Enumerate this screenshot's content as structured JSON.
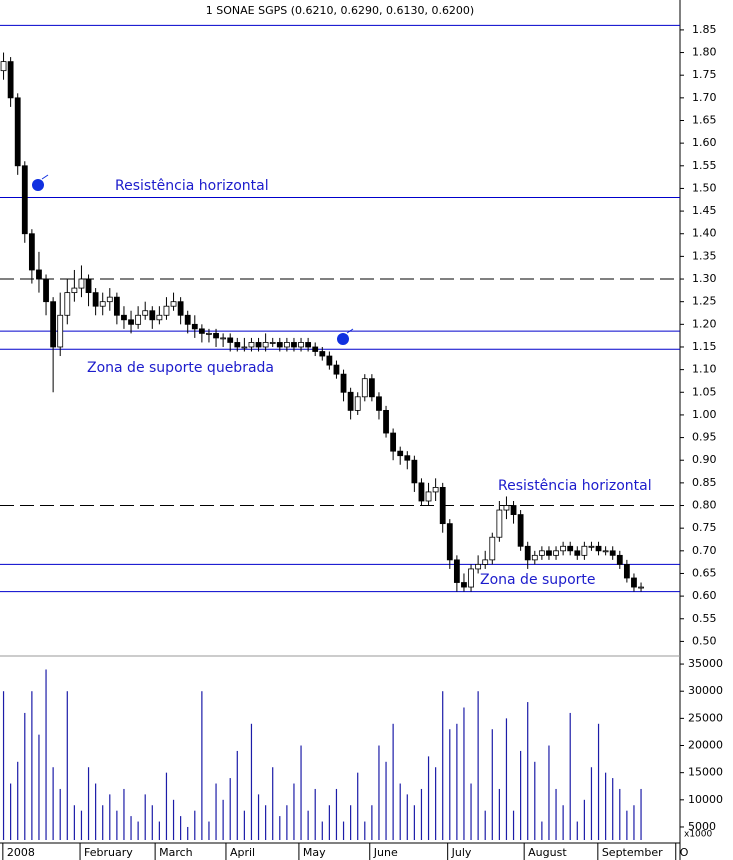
{
  "chart_data": [
    {
      "type": "candlestick",
      "title": "1 SONAE SGPS (0.6210, 0.6290, 0.6130, 0.6200)",
      "open": [
        1.76,
        1.78,
        1.7,
        1.55,
        1.4,
        1.32,
        1.3,
        1.25,
        1.15,
        1.22,
        1.27,
        1.28,
        1.3,
        1.27,
        1.24,
        1.25,
        1.26,
        1.22,
        1.21,
        1.2,
        1.22,
        1.23,
        1.21,
        1.22,
        1.24,
        1.25,
        1.22,
        1.2,
        1.19,
        1.18,
        1.18,
        1.17,
        1.17,
        1.16,
        1.15,
        1.15,
        1.16,
        1.15,
        1.16,
        1.16,
        1.15,
        1.16,
        1.15,
        1.16,
        1.15,
        1.14,
        1.13,
        1.11,
        1.09,
        1.05,
        1.01,
        1.04,
        1.08,
        1.04,
        1.01,
        0.96,
        0.92,
        0.91,
        0.9,
        0.85,
        0.81,
        0.83,
        0.84,
        0.76,
        0.68,
        0.63,
        0.62,
        0.66,
        0.67,
        0.68,
        0.73,
        0.79,
        0.8,
        0.78,
        0.71,
        0.68,
        0.69,
        0.7,
        0.69,
        0.7,
        0.71,
        0.7,
        0.69,
        0.71,
        0.71,
        0.7,
        0.7,
        0.69,
        0.67,
        0.64,
        0.62
      ],
      "high": [
        1.8,
        1.79,
        1.71,
        1.56,
        1.41,
        1.36,
        1.31,
        1.26,
        1.27,
        1.3,
        1.32,
        1.33,
        1.31,
        1.28,
        1.27,
        1.28,
        1.27,
        1.24,
        1.23,
        1.24,
        1.25,
        1.24,
        1.24,
        1.26,
        1.27,
        1.26,
        1.23,
        1.22,
        1.2,
        1.19,
        1.19,
        1.18,
        1.18,
        1.17,
        1.17,
        1.17,
        1.17,
        1.18,
        1.17,
        1.17,
        1.17,
        1.17,
        1.17,
        1.17,
        1.16,
        1.15,
        1.14,
        1.12,
        1.1,
        1.06,
        1.05,
        1.09,
        1.09,
        1.05,
        1.02,
        0.97,
        0.93,
        0.92,
        0.91,
        0.86,
        0.85,
        0.86,
        0.85,
        0.77,
        0.69,
        0.65,
        0.67,
        0.69,
        0.7,
        0.74,
        0.81,
        0.82,
        0.81,
        0.79,
        0.72,
        0.7,
        0.71,
        0.71,
        0.71,
        0.72,
        0.72,
        0.71,
        0.72,
        0.72,
        0.72,
        0.71,
        0.71,
        0.7,
        0.68,
        0.65,
        0.63
      ],
      "low": [
        1.74,
        1.68,
        1.53,
        1.38,
        1.29,
        1.27,
        1.22,
        1.05,
        1.13,
        1.2,
        1.25,
        1.26,
        1.24,
        1.22,
        1.22,
        1.23,
        1.2,
        1.19,
        1.18,
        1.19,
        1.21,
        1.19,
        1.2,
        1.21,
        1.23,
        1.2,
        1.18,
        1.17,
        1.16,
        1.16,
        1.15,
        1.15,
        1.14,
        1.14,
        1.14,
        1.14,
        1.14,
        1.14,
        1.15,
        1.14,
        1.14,
        1.14,
        1.14,
        1.14,
        1.13,
        1.12,
        1.1,
        1.08,
        1.03,
        0.99,
        1.0,
        1.03,
        1.03,
        0.99,
        0.95,
        0.9,
        0.89,
        0.88,
        0.83,
        0.8,
        0.8,
        0.81,
        0.74,
        0.66,
        0.61,
        0.61,
        0.61,
        0.65,
        0.66,
        0.67,
        0.72,
        0.77,
        0.76,
        0.7,
        0.66,
        0.67,
        0.68,
        0.68,
        0.68,
        0.69,
        0.69,
        0.68,
        0.68,
        0.7,
        0.69,
        0.69,
        0.68,
        0.66,
        0.63,
        0.61,
        0.61
      ],
      "close": [
        1.78,
        1.7,
        1.55,
        1.4,
        1.32,
        1.3,
        1.25,
        1.15,
        1.22,
        1.27,
        1.28,
        1.3,
        1.27,
        1.24,
        1.25,
        1.26,
        1.22,
        1.21,
        1.2,
        1.22,
        1.23,
        1.21,
        1.22,
        1.24,
        1.25,
        1.22,
        1.2,
        1.19,
        1.18,
        1.18,
        1.17,
        1.17,
        1.16,
        1.15,
        1.15,
        1.16,
        1.15,
        1.16,
        1.16,
        1.15,
        1.16,
        1.15,
        1.16,
        1.15,
        1.14,
        1.13,
        1.11,
        1.09,
        1.05,
        1.01,
        1.04,
        1.08,
        1.04,
        1.01,
        0.96,
        0.92,
        0.91,
        0.9,
        0.85,
        0.81,
        0.83,
        0.84,
        0.76,
        0.68,
        0.63,
        0.62,
        0.66,
        0.67,
        0.68,
        0.73,
        0.79,
        0.8,
        0.78,
        0.71,
        0.68,
        0.69,
        0.7,
        0.69,
        0.7,
        0.71,
        0.7,
        0.69,
        0.71,
        0.71,
        0.7,
        0.7,
        0.69,
        0.67,
        0.64,
        0.62,
        0.62
      ],
      "up_color": "#ffffff",
      "down_color": "#000000",
      "xlim": [
        0,
        96
      ],
      "ylim": [
        0.47,
        1.916
      ],
      "yticks": [
        {
          "value": 0.5,
          "label": "0.50"
        },
        {
          "value": 0.55,
          "label": "0.55"
        },
        {
          "value": 0.6,
          "label": "0.60"
        },
        {
          "value": 0.65,
          "label": "0.65"
        },
        {
          "value": 0.7,
          "label": "0.70"
        },
        {
          "value": 0.75,
          "label": "0.75"
        },
        {
          "value": 0.8,
          "label": "0.80"
        },
        {
          "value": 0.85,
          "label": "0.85"
        },
        {
          "value": 0.9,
          "label": "0.90"
        },
        {
          "value": 0.95,
          "label": "0.95"
        },
        {
          "value": 1.0,
          "label": "1.00"
        },
        {
          "value": 1.05,
          "label": "1.05"
        },
        {
          "value": 1.1,
          "label": "1.10"
        },
        {
          "value": 1.15,
          "label": "1.15"
        },
        {
          "value": 1.2,
          "label": "1.20"
        },
        {
          "value": 1.25,
          "label": "1.25"
        },
        {
          "value": 1.3,
          "label": "1.30"
        },
        {
          "value": 1.35,
          "label": "1.35"
        },
        {
          "value": 1.4,
          "label": "1.40"
        },
        {
          "value": 1.45,
          "label": "1.45"
        },
        {
          "value": 1.5,
          "label": "1.50"
        },
        {
          "value": 1.55,
          "label": "1.55"
        },
        {
          "value": 1.6,
          "label": "1.60"
        },
        {
          "value": 1.65,
          "label": "1.65"
        },
        {
          "value": 1.7,
          "label": "1.70"
        },
        {
          "value": 1.75,
          "label": "1.75"
        },
        {
          "value": 1.8,
          "label": "1.80"
        },
        {
          "value": 1.85,
          "label": "1.85"
        }
      ],
      "hlines": [
        {
          "value": 1.86,
          "style": "solid",
          "color": "#0000cc"
        },
        {
          "value": 1.48,
          "style": "solid",
          "color": "#0000cc"
        },
        {
          "value": 1.3,
          "style": "dashed",
          "color": "#000000"
        },
        {
          "value": 1.185,
          "style": "solid",
          "color": "#0000cc"
        },
        {
          "value": 1.145,
          "style": "solid",
          "color": "#0000cc"
        },
        {
          "value": 0.8,
          "style": "dashed",
          "color": "#000000"
        },
        {
          "value": 0.67,
          "style": "solid",
          "color": "#0000cc"
        },
        {
          "value": 0.61,
          "style": "solid",
          "color": "#0000cc"
        }
      ],
      "annotations": [
        "Resistência horizontal",
        "Zona de suporte quebrada",
        "Resistência horizontal",
        "Zona de suporte"
      ],
      "annotation_color": "#1c1ccc"
    },
    {
      "type": "bar",
      "color": "#1c1ca8",
      "values": [
        30000,
        13000,
        17000,
        26000,
        30000,
        22000,
        34000,
        16000,
        12000,
        30000,
        9000,
        8000,
        16000,
        13000,
        9000,
        11000,
        8000,
        12000,
        7000,
        6000,
        11000,
        9000,
        6000,
        15000,
        10000,
        7000,
        5000,
        8000,
        30000,
        6000,
        13000,
        10000,
        14000,
        19000,
        8000,
        24000,
        11000,
        9000,
        16000,
        7000,
        9000,
        13000,
        20000,
        8000,
        12000,
        6000,
        9000,
        12000,
        6000,
        9000,
        15000,
        6000,
        9000,
        20000,
        17000,
        24000,
        13000,
        11000,
        9000,
        12000,
        18000,
        16000,
        30000,
        23000,
        24000,
        27000,
        13000,
        30000,
        8000,
        23000,
        12000,
        25000,
        8000,
        19000,
        28000,
        17000,
        6000,
        20000,
        12000,
        9000,
        26000,
        6000,
        10000,
        16000,
        24000,
        15000,
        14000,
        12000,
        8000,
        9000,
        12000
      ],
      "xlim": [
        0,
        96
      ],
      "ylim": [
        2600,
        36300
      ],
      "yticks": [
        5000,
        10000,
        15000,
        20000,
        25000,
        30000,
        35000
      ],
      "unit_label": "x1000",
      "xticks": [
        {
          "value": 0.4,
          "label": "2008"
        },
        {
          "value": 11.3,
          "label": "February"
        },
        {
          "value": 21.9,
          "label": "March"
        },
        {
          "value": 31.9,
          "label": "April"
        },
        {
          "value": 42.2,
          "label": "May"
        },
        {
          "value": 52.2,
          "label": "June"
        },
        {
          "value": 63.2,
          "label": "July"
        },
        {
          "value": 74,
          "label": "August"
        },
        {
          "value": 84.4,
          "label": "September"
        },
        {
          "value": 95.4,
          "label": "O"
        }
      ]
    }
  ]
}
